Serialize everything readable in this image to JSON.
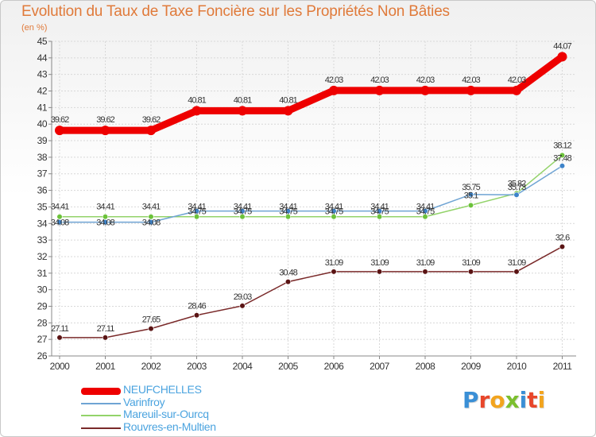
{
  "header": {
    "title": "Evolution du Taux de Taxe Foncière sur les Propriétés Non Bâties",
    "unit": "(en %)"
  },
  "logo": {
    "letters": [
      "P",
      "r",
      "o",
      "x",
      "i",
      "t",
      "i"
    ],
    "colors": [
      "#3a8fd6",
      "#e8462a",
      "#f2a41e",
      "#7bbf2e",
      "#3a8fd6",
      "#e8462a",
      "#f2a41e"
    ]
  },
  "chart_data": {
    "type": "line",
    "title": "Evolution du Taux de Taxe Foncière sur les Propriétés Non Bâties",
    "ylabel": "(en %)",
    "xlabel": "",
    "x": [
      "2000",
      "2001",
      "2002",
      "2003",
      "2004",
      "2005",
      "2006",
      "2007",
      "2008",
      "2009",
      "2010",
      "2011"
    ],
    "ylim": [
      26,
      45
    ],
    "yticks": [
      "26",
      "27",
      "28",
      "29",
      "30",
      "31",
      "32",
      "33",
      "34",
      "35",
      "36",
      "37",
      "38",
      "39",
      "40",
      "41",
      "42",
      "43",
      "44",
      "45"
    ],
    "grid": true,
    "legend_position": "bottom-left",
    "series": [
      {
        "name": "NEUFCHELLES",
        "color": "#ee0000",
        "values": [
          39.62,
          39.62,
          39.62,
          40.81,
          40.81,
          40.81,
          42.03,
          42.03,
          42.03,
          42.03,
          42.03,
          44.07
        ],
        "labels": [
          "39.62",
          "39.62",
          "39.62",
          "40.81",
          "40.81",
          "40.81",
          "42.03",
          "42.03",
          "42.03",
          "42.03",
          "42.03",
          "44.07"
        ]
      },
      {
        "name": "Varinfroy",
        "color": "#6fa4d4",
        "marker": "#3d83c9",
        "values": [
          34.08,
          34.08,
          34.08,
          34.75,
          34.75,
          34.75,
          34.75,
          34.75,
          34.75,
          35.75,
          35.73,
          37.48
        ],
        "labels": [
          "34.08",
          "34.08",
          "34.08",
          "34.75",
          "34.75",
          "34.75",
          "34.75",
          "34.75",
          "34.75",
          "35.75",
          "35.73",
          "37.48"
        ]
      },
      {
        "name": "Mareuil-sur-Ourcq",
        "color": "#93d36a",
        "marker": "#6cc23a",
        "values": [
          34.41,
          34.41,
          34.41,
          34.41,
          34.41,
          34.41,
          34.41,
          34.41,
          34.41,
          35.1,
          35.82,
          38.12
        ],
        "labels": [
          "34.41",
          "34.41",
          "34.41",
          "34.41",
          "34.41",
          "34.41",
          "34.41",
          "34.41",
          "34.41",
          "35.1",
          "35.82",
          "38.12"
        ]
      },
      {
        "name": "Rouvres-en-Multien",
        "color": "#7a2a2a",
        "marker": "#5a1414",
        "values": [
          27.11,
          27.11,
          27.65,
          28.46,
          29.03,
          30.48,
          31.09,
          31.09,
          31.09,
          31.09,
          31.09,
          32.6
        ],
        "labels": [
          "27.11",
          "27.11",
          "27.65",
          "28.46",
          "29.03",
          "30.48",
          "31.09",
          "31.09",
          "31.09",
          "31.09",
          "31.09",
          "32.6"
        ]
      }
    ]
  }
}
